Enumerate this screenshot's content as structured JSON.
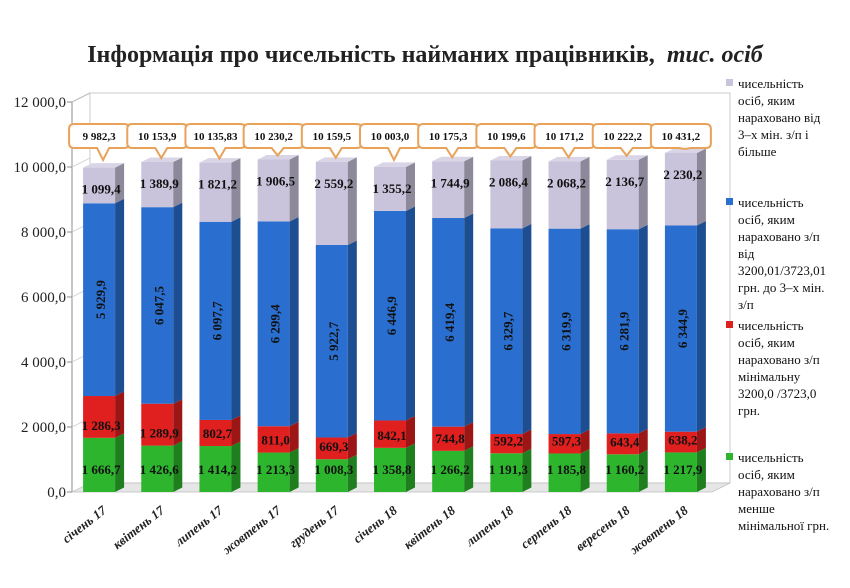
{
  "chart_data": {
    "type": "bar",
    "stacked": true,
    "title": "Інформація про чисельність найманих працівників,",
    "title_italic": "тис. осіб",
    "categories": [
      "січень 17",
      "квітень 17",
      "липень 17",
      "жовтень 17",
      "грудень 17",
      "січень 18",
      "квітень 18",
      "липень 18",
      "серпень 18",
      "вересень 18",
      "жовтень 18"
    ],
    "ylim": [
      0,
      12000
    ],
    "yticks": [
      {
        "value": 0,
        "label": "0,0"
      },
      {
        "value": 2000,
        "label": "2 000,0"
      },
      {
        "value": 4000,
        "label": "4 000,0"
      },
      {
        "value": 6000,
        "label": "6 000,0"
      },
      {
        "value": 8000,
        "label": "8 000,0"
      },
      {
        "value": 10000,
        "label": "10 000,0"
      },
      {
        "value": 12000,
        "label": "12 000,0"
      }
    ],
    "series": [
      {
        "name": "чисельність осіб, яким нараховано з/п менше мінімальної грн.",
        "legend_lines": [
          "чисельність",
          "осіб, яким",
          "нараховано з/п",
          "менше",
          "мінімальної грн."
        ],
        "color": "#2db52d",
        "values": [
          1666.7,
          1426.6,
          1414.2,
          1213.3,
          1008.3,
          1358.8,
          1266.2,
          1191.3,
          1185.8,
          1160.2,
          1217.9
        ],
        "labels": [
          "1 666,7",
          "1 426,6",
          "1 414,2",
          "1 213,3",
          "1 008,3",
          "1 358,8",
          "1 266,2",
          "1 191,3",
          "1 185,8",
          "1 160,2",
          "1 217,9"
        ]
      },
      {
        "name": "чисельність осіб, яким нараховано з/п мінімальну 3200,0 /3723,0 грн.",
        "legend_lines": [
          "чисельність",
          "осіб, яким",
          "нараховано з/п",
          "мінімальну",
          "3200,0 /3723,0",
          "грн."
        ],
        "color": "#e01f1f",
        "values": [
          1286.3,
          1289.9,
          802.7,
          811.0,
          669.3,
          842.1,
          744.8,
          592.2,
          597.3,
          643.4,
          638.2
        ],
        "labels": [
          "1 286,3",
          "1 289,9",
          "802,7",
          "811,0",
          "669,3",
          "842,1",
          "744,8",
          "592,2",
          "597,3",
          "643,4",
          "638,2"
        ]
      },
      {
        "name": "чисельність осіб, яким нараховано з/п від 3200,01/3723,01 грн. до 3–х мін. з/п",
        "legend_lines": [
          "чисельність",
          "осіб, яким",
          "нараховано з/п",
          "від",
          "3200,01/3723,01",
          "грн. до 3–х мін.",
          "з/п"
        ],
        "color": "#2a6fcf",
        "values": [
          5929.9,
          6047.5,
          6097.7,
          6299.4,
          5922.7,
          6446.9,
          6419.4,
          6329.7,
          6319.9,
          6281.9,
          6344.9
        ],
        "labels": [
          "5 929,9",
          "6 047,5",
          "6 097,7",
          "6 299,4",
          "5 922,7",
          "6 446,9",
          "6 419,4",
          "6 329,7",
          "6 319,9",
          "6 281,9",
          "6 344,9"
        ]
      },
      {
        "name": "чисельність осіб, яким нараховано від 3–х мін. з/п і більше",
        "legend_lines": [
          "чисельність",
          "осіб, яким",
          "нараховано від",
          "3–х мін. з/п і",
          "більше"
        ],
        "color": "#c9c3dc",
        "values": [
          1099.4,
          1389.9,
          1821.2,
          1906.5,
          2559.2,
          1355.2,
          1744.9,
          2086.4,
          2068.2,
          2136.7,
          2230.2
        ],
        "labels": [
          "1 099,4",
          "1 389,9",
          "1 821,2",
          "1 906,5",
          "2 559,2",
          "1 355,2",
          "1 744,9",
          "2 086,4",
          "2 068,2",
          "2 136,7",
          "2 230,2"
        ]
      }
    ],
    "totals": [
      9982.3,
      10153.9,
      10135.83,
      10230.2,
      10159.5,
      10003.0,
      10175.3,
      10199.6,
      10171.2,
      10222.2,
      10431.2
    ],
    "total_labels": [
      "9 982,3",
      "10 153,9",
      "10 135,83",
      "10 230,2",
      "10 159,5",
      "10 003,0",
      "10 175,3",
      "10 199,6",
      "10 171,2",
      "10 222,2",
      "10 431,2"
    ],
    "legend_position": "right",
    "grid": false
  }
}
